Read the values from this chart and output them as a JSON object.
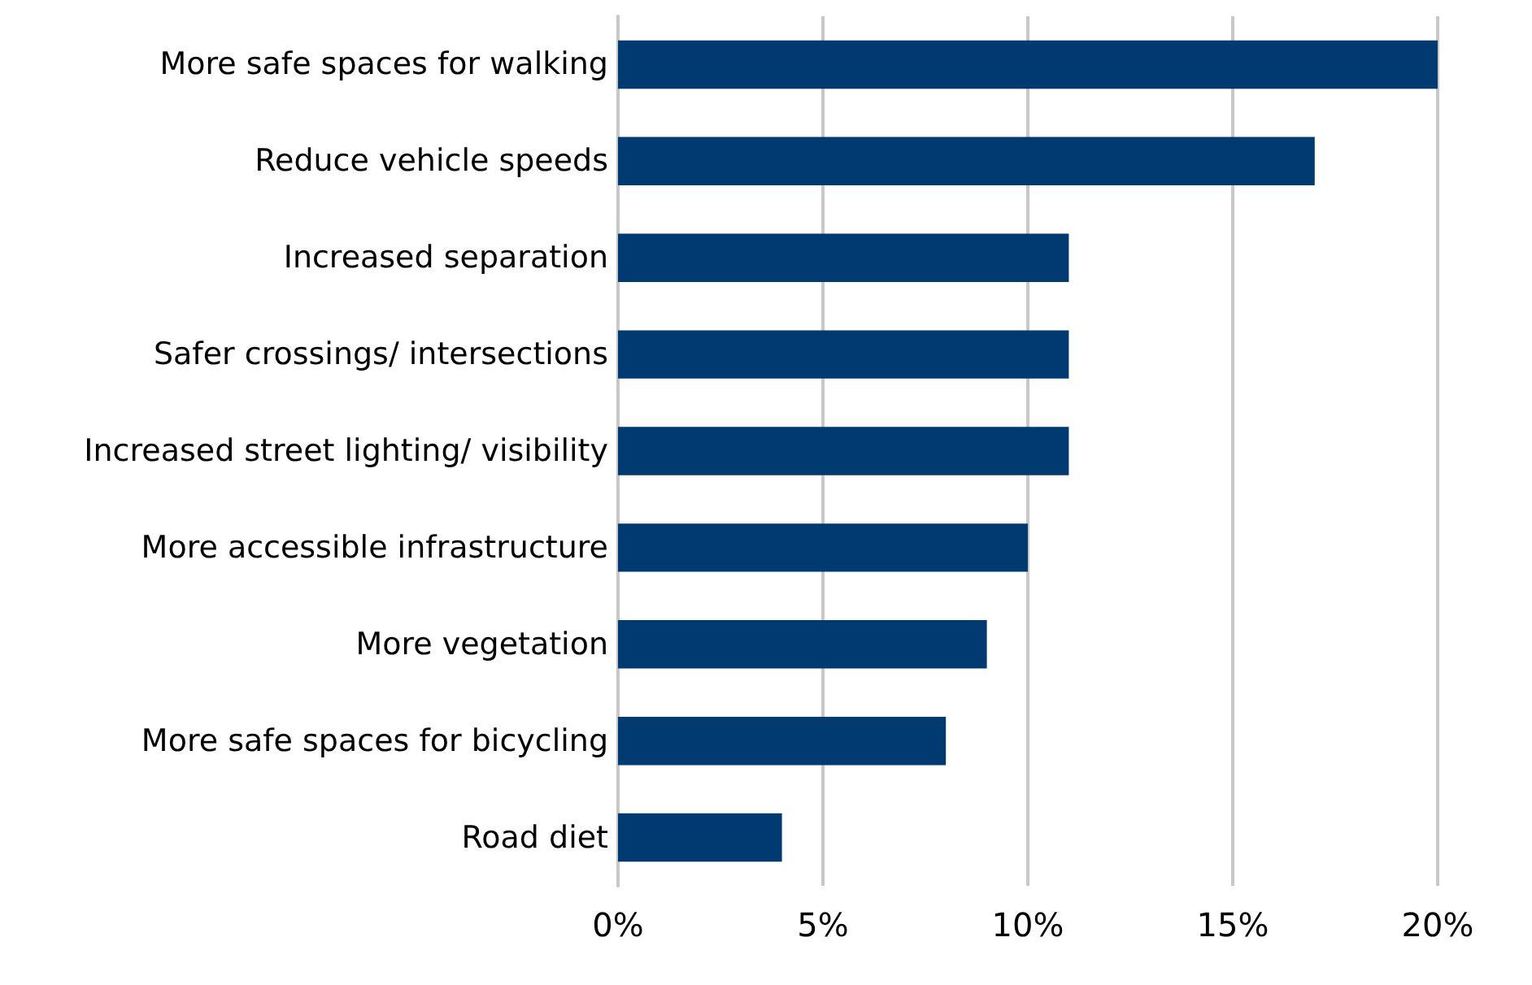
{
  "chart_data": {
    "type": "bar",
    "orientation": "horizontal",
    "categories": [
      "More safe spaces for walking",
      "Reduce vehicle speeds",
      "Increased separation",
      "Safer crossings/ intersections",
      "Increased street lighting/ visibility",
      "More accessible infrastructure",
      "More vegetation",
      "More safe spaces for bicycling",
      "Road diet"
    ],
    "values": [
      20,
      17,
      11,
      11,
      11,
      10,
      9,
      8,
      4
    ],
    "color": "#003a70",
    "xlim": [
      0,
      20
    ],
    "xticks": [
      {
        "value": 0,
        "label": "0%"
      },
      {
        "value": 5,
        "label": "5%"
      },
      {
        "value": 10,
        "label": "10%"
      },
      {
        "value": 15,
        "label": "15%"
      },
      {
        "value": 20,
        "label": "20%"
      }
    ],
    "grid": "x"
  }
}
